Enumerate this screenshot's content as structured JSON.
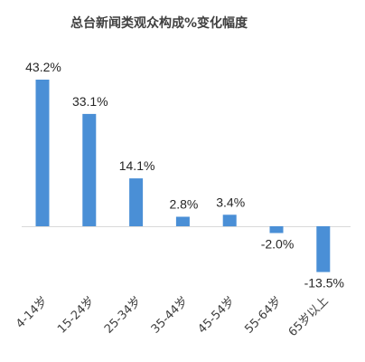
{
  "chart_data": {
    "type": "bar",
    "title": "总台新闻类观众构成%变化幅度",
    "categories": [
      "4-14岁",
      "15-24岁",
      "25-34岁",
      "35-44岁",
      "45-54岁",
      "55-64岁",
      "65岁以上"
    ],
    "values": [
      43.2,
      33.1,
      14.1,
      2.8,
      3.4,
      -2.0,
      -13.5
    ],
    "data_labels": [
      "43.2%",
      "33.1%",
      "14.1%",
      "2.8%",
      "3.4%",
      "-2.0%",
      "-13.5%"
    ],
    "xlabel": "",
    "ylabel": "",
    "colors": {
      "bar": "#4a8fd6",
      "axis": "#d9d9d9"
    },
    "grid": false,
    "legend": "none"
  }
}
